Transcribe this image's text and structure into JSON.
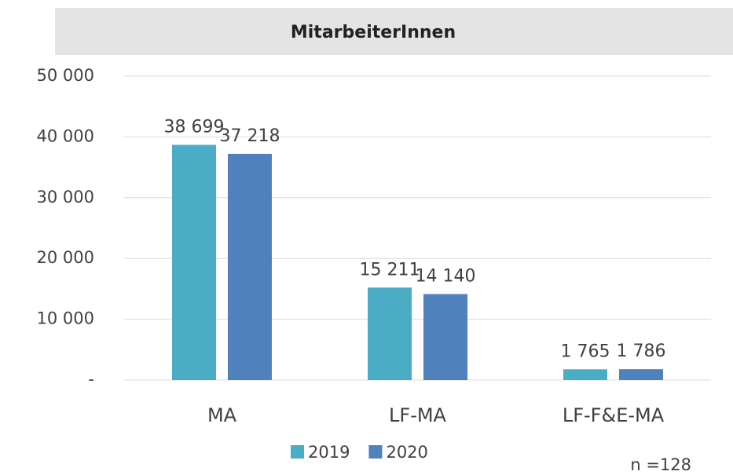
{
  "chart_data": {
    "type": "bar",
    "title": "MitarbeiterInnen",
    "categories": [
      "MA",
      "LF-MA",
      "LF-F&E-MA"
    ],
    "series": [
      {
        "name": "2019",
        "color": "#4bacc6",
        "values": [
          38699,
          15211,
          1765
        ],
        "value_labels": [
          "38 699",
          "15 211",
          "1 765"
        ]
      },
      {
        "name": "2020",
        "color": "#4f81bd",
        "values": [
          37218,
          14140,
          1786
        ],
        "value_labels": [
          "37 218",
          "14 140",
          "1 786"
        ]
      }
    ],
    "ylim": [
      0,
      50000
    ],
    "yticks": [
      {
        "value": 0,
        "label": "-"
      },
      {
        "value": 10000,
        "label": "10 000"
      },
      {
        "value": 20000,
        "label": "20 000"
      },
      {
        "value": 30000,
        "label": "30 000"
      },
      {
        "value": 40000,
        "label": "40 000"
      },
      {
        "value": 50000,
        "label": "50 000"
      }
    ],
    "grid": true,
    "legend": "bottom",
    "annotation": "n =128"
  }
}
